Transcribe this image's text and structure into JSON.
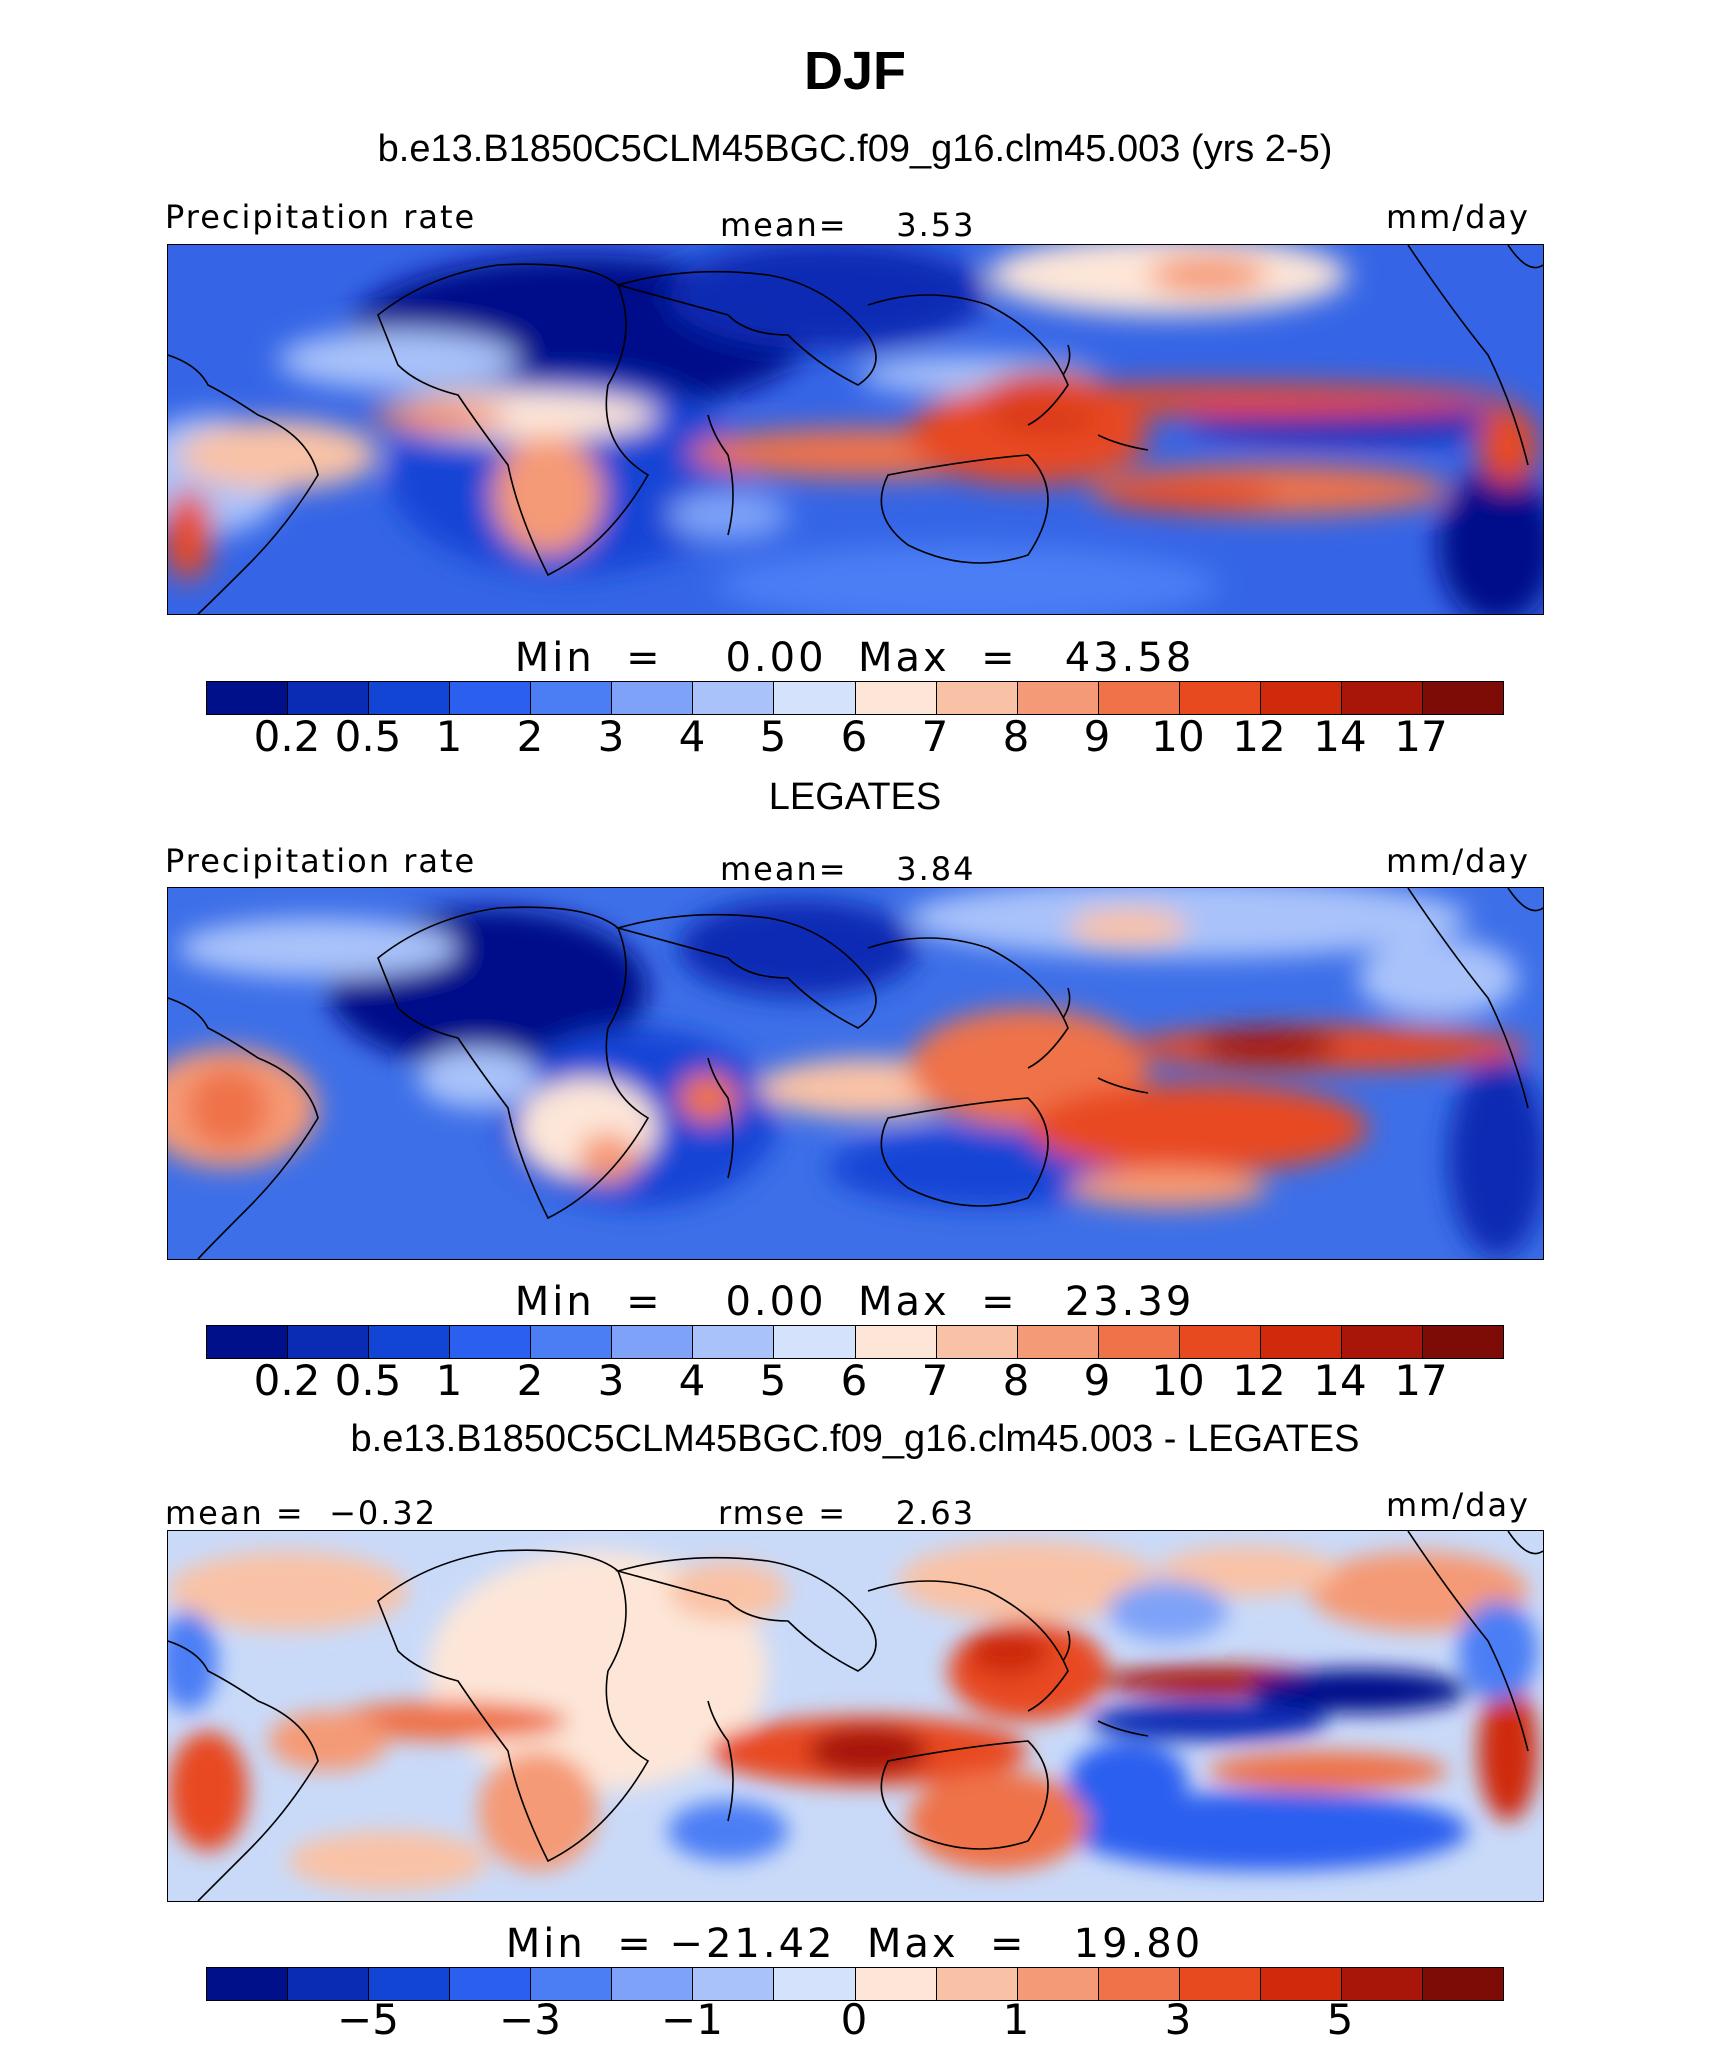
{
  "title": "DJF",
  "panels": [
    {
      "subtitle": "b.e13.B1850C5CLM45BGC.f09_g16.clm45.003 (yrs 2-5)",
      "left_label": "Precipitation rate",
      "center_label": "mean=    3.53",
      "units": "mm/day",
      "minmax": "Min  =    0.00  Max  =   43.58"
    },
    {
      "subtitle": "LEGATES",
      "left_label": "Precipitation rate",
      "center_label": "mean=    3.84",
      "units": "mm/day",
      "minmax": "Min  =    0.00  Max  =   23.39"
    },
    {
      "subtitle": "b.e13.B1850C5CLM45BGC.f09_g16.clm45.003 - LEGATES",
      "left_label": "mean =  −0.32",
      "center_label": "rmse =    2.63",
      "units": "mm/day",
      "minmax": "Min  = −21.42  Max  =   19.80"
    }
  ],
  "colorbars": {
    "precip_colors": [
      "#00108a",
      "#0a2cb4",
      "#1244d6",
      "#2a5ff0",
      "#4b7ef5",
      "#7ea2f8",
      "#a9c2fa",
      "#d4e2fb",
      "#fde6d8",
      "#f9c2a6",
      "#f59a76",
      "#ef7248",
      "#e84a20",
      "#cf2a0c",
      "#a8160a",
      "#7d0c06"
    ],
    "precip_ticks": [
      "0.2",
      "0.5",
      "1",
      "2",
      "3",
      "4",
      "5",
      "6",
      "7",
      "8",
      "9",
      "10",
      "12",
      "14",
      "17"
    ],
    "diff_colors": [
      "#00108a",
      "#0a2cb4",
      "#1244d6",
      "#2a5ff0",
      "#4b7ef5",
      "#7ea2f8",
      "#a9c2fa",
      "#d4e2fb",
      "#fde6d8",
      "#f9c2a6",
      "#f59a76",
      "#ef7248",
      "#e84a20",
      "#cf2a0c",
      "#a8160a",
      "#7d0c06"
    ],
    "diff_ticks": [
      "−5",
      "−3",
      "−1",
      "0",
      "1",
      "3",
      "5"
    ]
  },
  "chart_data": [
    {
      "type": "heatmap",
      "title": "DJF",
      "subtitle": "b.e13.B1850C5CLM45BGC.f09_g16.clm45.003 (yrs 2-5)",
      "variable": "Precipitation rate",
      "units": "mm/day",
      "mean": 3.53,
      "min": 0.0,
      "max": 43.58,
      "contour_levels": [
        0.2,
        0.5,
        1,
        2,
        3,
        4,
        5,
        6,
        7,
        8,
        9,
        10,
        12,
        14,
        17
      ]
    },
    {
      "type": "heatmap",
      "title": "LEGATES",
      "variable": "Precipitation rate",
      "units": "mm/day",
      "mean": 3.84,
      "min": 0.0,
      "max": 23.39,
      "contour_levels": [
        0.2,
        0.5,
        1,
        2,
        3,
        4,
        5,
        6,
        7,
        8,
        9,
        10,
        12,
        14,
        17
      ]
    },
    {
      "type": "heatmap",
      "title": "b.e13.B1850C5CLM45BGC.f09_g16.clm45.003 - LEGATES",
      "units": "mm/day",
      "mean": -0.32,
      "rmse": 2.63,
      "min": -21.42,
      "max": 19.8,
      "contour_levels": [
        -5,
        -3,
        -1,
        0,
        1,
        3,
        5
      ]
    }
  ]
}
